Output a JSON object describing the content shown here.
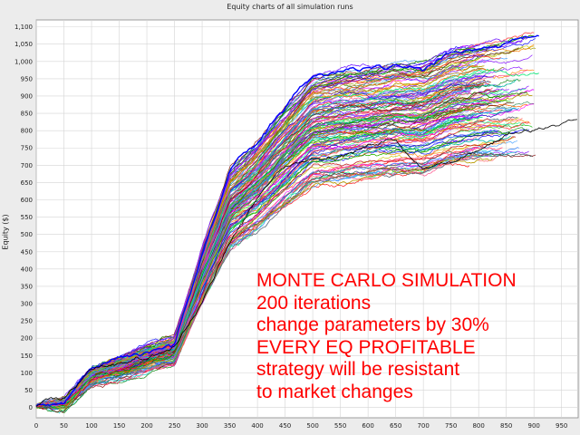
{
  "chart_data": {
    "type": "line",
    "title": "Equity charts of all simulation runs",
    "xlabel": "",
    "ylabel": "Equity ($)",
    "xlim": [
      0,
      980
    ],
    "ylim": [
      -30,
      1120
    ],
    "x_ticks": [
      0,
      50,
      100,
      150,
      200,
      250,
      300,
      350,
      400,
      450,
      500,
      550,
      600,
      650,
      700,
      750,
      800,
      850,
      900,
      950
    ],
    "y_ticks": [
      0,
      50,
      100,
      150,
      200,
      250,
      300,
      350,
      400,
      450,
      500,
      550,
      600,
      650,
      700,
      750,
      800,
      850,
      900,
      950,
      1000,
      1050,
      1100
    ],
    "y_tick_labels": [
      "0",
      "50",
      "100",
      "150",
      "200",
      "250",
      "300",
      "350",
      "400",
      "450",
      "500",
      "550",
      "600",
      "650",
      "700",
      "750",
      "800",
      "850",
      "900",
      "950",
      "1,000",
      "1,050",
      "1,100"
    ],
    "grid": true,
    "series_count": 200,
    "representative_series": [
      {
        "color": "#0000ff",
        "x": [
          0,
          50,
          100,
          150,
          200,
          250,
          300,
          350,
          400,
          450,
          500,
          550,
          600,
          650,
          700,
          750,
          800,
          850,
          910
        ],
        "y": [
          5,
          15,
          110,
          140,
          175,
          200,
          460,
          690,
          770,
          870,
          960,
          975,
          985,
          1000,
          1000,
          1040,
          1055,
          1065,
          1085
        ]
      },
      {
        "color": "#000000",
        "x": [
          0,
          50,
          100,
          150,
          200,
          250,
          300,
          350,
          400,
          450,
          500,
          550,
          600,
          650,
          700,
          750,
          800,
          850,
          900,
          980
        ],
        "y": [
          5,
          20,
          95,
          115,
          140,
          170,
          300,
          470,
          600,
          690,
          720,
          740,
          760,
          780,
          690,
          720,
          760,
          800,
          800,
          835
        ]
      }
    ]
  },
  "annotation": {
    "lines": [
      "MONTE CARLO SIMULATION",
      "200 iterations",
      "change parameters by 30%",
      "EVERY EQ PROFITABLE",
      "strategy will be resistant",
      "to market changes"
    ],
    "color": "#ff0000"
  }
}
